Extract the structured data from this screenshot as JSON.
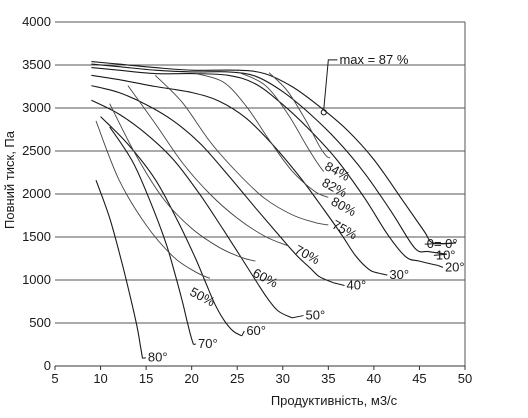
{
  "chart_data": {
    "type": "line",
    "xlabel": "Продуктивність, м3/с",
    "ylabel": "Повний тиск, Па",
    "xlim": [
      5,
      50
    ],
    "ylim": [
      0,
      4000
    ],
    "x_ticks": [
      "5",
      "10",
      "15",
      "20",
      "25",
      "30",
      "35",
      "40",
      "45",
      "50"
    ],
    "y_ticks": [
      "0",
      "500",
      "1000",
      "1500",
      "2000",
      "2500",
      "3000",
      "3500",
      "4000"
    ],
    "grid": "horizontal",
    "max_label": "max = 87 %",
    "max_point": [
      34.5,
      2950
    ],
    "max_label_anchor": [
      36,
      3500
    ],
    "series": [
      {
        "label": "0= 0°",
        "label_pos": [
          45.8,
          1370
        ],
        "points": [
          [
            9,
            3540
          ],
          [
            12,
            3510
          ],
          [
            16,
            3470
          ],
          [
            20,
            3440
          ],
          [
            25,
            3440
          ],
          [
            28,
            3400
          ],
          [
            31,
            3250
          ],
          [
            34,
            3020
          ],
          [
            37,
            2750
          ],
          [
            40,
            2400
          ],
          [
            43,
            1950
          ],
          [
            45.5,
            1570
          ],
          [
            46.5,
            1430
          ],
          [
            49,
            1430
          ]
        ]
      },
      {
        "label": "10°",
        "label_pos": [
          46.8,
          1240
        ],
        "points": [
          [
            9,
            3510
          ],
          [
            12,
            3480
          ],
          [
            16,
            3440
          ],
          [
            20,
            3420
          ],
          [
            24,
            3420
          ],
          [
            27,
            3370
          ],
          [
            30,
            3190
          ],
          [
            33,
            2930
          ],
          [
            36,
            2620
          ],
          [
            39,
            2240
          ],
          [
            42,
            1780
          ],
          [
            44.5,
            1370
          ],
          [
            46,
            1330
          ],
          [
            48,
            1300
          ]
        ]
      },
      {
        "label": "20°",
        "label_pos": [
          47.8,
          1100
        ],
        "points": [
          [
            9,
            3470
          ],
          [
            12,
            3440
          ],
          [
            16,
            3400
          ],
          [
            20,
            3400
          ],
          [
            24,
            3380
          ],
          [
            27,
            3280
          ],
          [
            30,
            3040
          ],
          [
            33,
            2740
          ],
          [
            36,
            2390
          ],
          [
            39,
            1950
          ],
          [
            41.5,
            1530
          ],
          [
            43.5,
            1270
          ],
          [
            45,
            1220
          ],
          [
            47,
            1170
          ]
        ]
      },
      {
        "label": "30°",
        "label_pos": [
          41.7,
          1010
        ],
        "points": [
          [
            9,
            3380
          ],
          [
            12,
            3330
          ],
          [
            16,
            3250
          ],
          [
            20,
            3180
          ],
          [
            23,
            3080
          ],
          [
            26,
            2880
          ],
          [
            29,
            2560
          ],
          [
            32,
            2180
          ],
          [
            34.5,
            1820
          ],
          [
            36.5,
            1520
          ],
          [
            38,
            1280
          ],
          [
            39.5,
            1120
          ],
          [
            40.5,
            1080
          ]
        ]
      },
      {
        "label": "40°",
        "label_pos": [
          37,
          890
        ],
        "points": [
          [
            9,
            3260
          ],
          [
            12,
            3180
          ],
          [
            15,
            3040
          ],
          [
            18,
            2850
          ],
          [
            21,
            2580
          ],
          [
            24,
            2220
          ],
          [
            27,
            1840
          ],
          [
            29.5,
            1530
          ],
          [
            31.5,
            1290
          ],
          [
            33,
            1140
          ],
          [
            34,
            1040
          ],
          [
            35.5,
            970
          ]
        ]
      },
      {
        "label": "50°",
        "label_pos": [
          32.5,
          540
        ],
        "points": [
          [
            9,
            3090
          ],
          [
            12,
            2930
          ],
          [
            15,
            2700
          ],
          [
            18,
            2400
          ],
          [
            21,
            1980
          ],
          [
            23.5,
            1580
          ],
          [
            25.5,
            1250
          ],
          [
            27,
            1000
          ],
          [
            28.3,
            790
          ],
          [
            29.5,
            640
          ],
          [
            31,
            560
          ]
        ]
      },
      {
        "label": "60°",
        "label_pos": [
          26,
          360
        ],
        "points": [
          [
            10,
            2900
          ],
          [
            13,
            2580
          ],
          [
            16,
            2170
          ],
          [
            18.5,
            1680
          ],
          [
            20.3,
            1280
          ],
          [
            21.5,
            980
          ],
          [
            22.5,
            730
          ],
          [
            23.5,
            540
          ],
          [
            24.5,
            410
          ],
          [
            25.5,
            350
          ]
        ]
      },
      {
        "label": "70°",
        "label_pos": [
          20.7,
          210
        ],
        "points": [
          [
            11,
            2780
          ],
          [
            13.5,
            2380
          ],
          [
            15.5,
            1900
          ],
          [
            17.2,
            1420
          ],
          [
            18.3,
            1020
          ],
          [
            19,
            740
          ],
          [
            19.5,
            520
          ],
          [
            19.9,
            350
          ],
          [
            20.2,
            250
          ]
        ]
      },
      {
        "label": "80°",
        "label_pos": [
          15.2,
          50
        ],
        "points": [
          [
            9.5,
            2160
          ],
          [
            11,
            1720
          ],
          [
            12.3,
            1220
          ],
          [
            13.3,
            790
          ],
          [
            14,
            460
          ],
          [
            14.4,
            220
          ],
          [
            14.6,
            90
          ]
        ]
      }
    ],
    "efficiency_curves": [
      {
        "label": "84%",
        "label_pos": [
          34.5,
          2290
        ],
        "points": [
          [
            28.5,
            3410
          ],
          [
            30.5,
            3200
          ],
          [
            32.5,
            2860
          ],
          [
            34,
            2560
          ],
          [
            34.8,
            2440
          ],
          [
            35.2,
            2420
          ]
        ]
      },
      {
        "label": "82%",
        "label_pos": [
          34.2,
          2100
        ],
        "points": [
          [
            25,
            3420
          ],
          [
            28,
            3270
          ],
          [
            30.5,
            2940
          ],
          [
            32.5,
            2580
          ],
          [
            33.8,
            2360
          ],
          [
            34.5,
            2260
          ]
        ]
      },
      {
        "label": "80%",
        "label_pos": [
          35.2,
          1880
        ],
        "points": [
          [
            20.5,
            3400
          ],
          [
            23.5,
            3300
          ],
          [
            26,
            3020
          ],
          [
            28.5,
            2630
          ],
          [
            31,
            2270
          ],
          [
            33.5,
            2030
          ],
          [
            35,
            1960
          ]
        ]
      },
      {
        "label": "75%",
        "label_pos": [
          35.3,
          1610
        ],
        "points": [
          [
            16,
            3380
          ],
          [
            19,
            3060
          ],
          [
            22,
            2610
          ],
          [
            25,
            2250
          ],
          [
            28,
            1950
          ],
          [
            31,
            1760
          ],
          [
            33.5,
            1670
          ],
          [
            35,
            1640
          ]
        ]
      },
      {
        "label": "70%",
        "label_pos": [
          31.2,
          1320
        ],
        "points": [
          [
            13,
            3260
          ],
          [
            16,
            2820
          ],
          [
            19,
            2360
          ],
          [
            22,
            2000
          ],
          [
            25,
            1720
          ],
          [
            28,
            1510
          ],
          [
            30.5,
            1400
          ]
        ]
      },
      {
        "label": "60%",
        "label_pos": [
          26.6,
          1050
        ],
        "points": [
          [
            11,
            3050
          ],
          [
            14,
            2430
          ],
          [
            17,
            1930
          ],
          [
            20,
            1600
          ],
          [
            23,
            1380
          ],
          [
            25.5,
            1260
          ],
          [
            27,
            1220
          ]
        ]
      },
      {
        "label": "50%",
        "label_pos": [
          19.7,
          830
        ],
        "points": [
          [
            9.5,
            2850
          ],
          [
            12,
            2170
          ],
          [
            15,
            1640
          ],
          [
            18,
            1270
          ],
          [
            20.5,
            1090
          ],
          [
            22,
            1020
          ]
        ]
      }
    ]
  }
}
